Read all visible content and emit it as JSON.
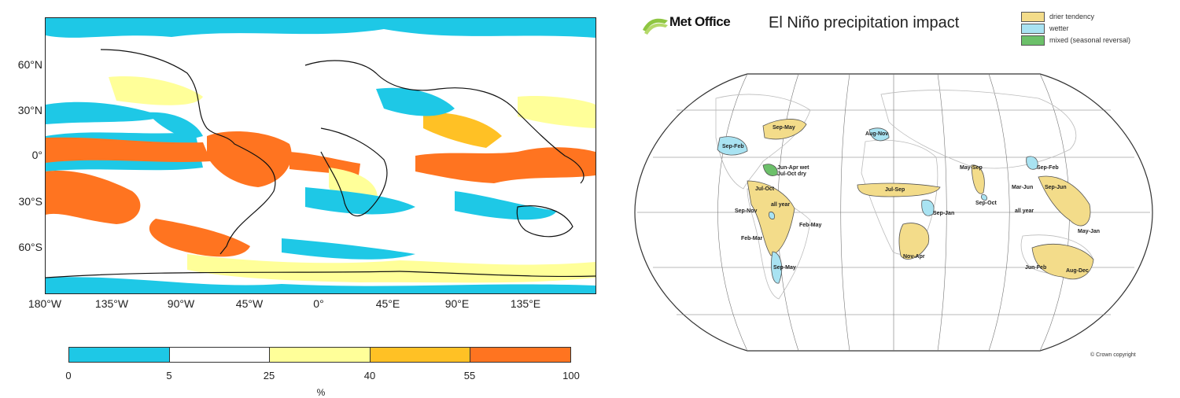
{
  "left_map": {
    "lat_labels": [
      "60°N",
      "30°N",
      "0°",
      "30°S",
      "60°S"
    ],
    "lon_labels": [
      "180°W",
      "135°W",
      "90°W",
      "45°W",
      "0°",
      "45°E",
      "90°E",
      "135°E"
    ]
  },
  "colorbar": {
    "ticks": [
      "0",
      "5",
      "25",
      "40",
      "55",
      "100"
    ],
    "unit": "%",
    "colors": [
      "#1ec8e6",
      "#ffffff",
      "#ffff99",
      "#ffc125",
      "#ff7420"
    ]
  },
  "right_map": {
    "logo_text": "Met Office",
    "title": "El Niño precipitation impact",
    "legend": [
      {
        "label": "drier tendency",
        "color": "#f3dc8a"
      },
      {
        "label": "wetter",
        "color": "#a9e3f2"
      },
      {
        "label": "mixed (seasonal reversal)",
        "color": "#6cc06a"
      }
    ],
    "region_labels": {
      "sep_may_na": "Sep-May",
      "sep_feb_us": "Sep-Feb",
      "jun_apr": "Jun-Apr wet",
      "jul_oct_dry": "Jul-Oct dry",
      "jul_oct": "Jul-Oct",
      "all_year": "all year",
      "sep_nov": "Sep-Nov",
      "feb_may_sa": "Feb-May",
      "feb_mar": "Feb-Mar",
      "sep_may_sa": "Sep-May",
      "aug_nov": "Aug-Nov",
      "jul_sep": "Jul-Sep",
      "sep_jan": "Sep-Jan",
      "nov_apr": "Nov-Apr",
      "may_sep": "May-Sep",
      "sep_oct": "Sep-Oct",
      "sep_feb_asia": "Sep-Feb",
      "mar_jun": "Mar-Jun",
      "sep_jun": "Sep-Jun",
      "all_year_asia": "all year",
      "may_jan": "May-Jan",
      "jun_feb": "Jun-Feb",
      "aug_dec": "Aug-Dec"
    },
    "copyright": "© Crown copyright"
  }
}
